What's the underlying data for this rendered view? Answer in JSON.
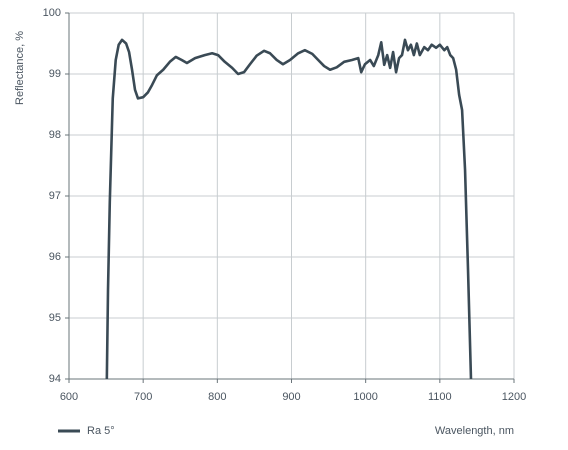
{
  "chart_data": {
    "type": "line",
    "x_label": "Wavelength, nm",
    "y_label": "Reflectance, %",
    "xlim": [
      600,
      1200
    ],
    "ylim": [
      94,
      100
    ],
    "xticks": [
      600,
      700,
      800,
      900,
      1000,
      1100,
      1200
    ],
    "yticks": [
      94,
      95,
      96,
      97,
      98,
      99,
      100
    ],
    "grid": true,
    "legend": "bottom-left",
    "x": [
      651,
      652.6,
      655,
      659,
      663,
      667,
      671.5,
      677,
      681,
      685,
      689,
      693,
      700,
      706.5,
      712,
      718.6,
      727,
      736,
      744,
      752,
      759,
      770,
      783,
      793,
      801,
      810,
      820,
      828,
      836,
      844,
      853,
      863,
      871,
      880,
      888.5,
      898,
      909,
      918,
      928,
      936,
      944,
      952,
      961,
      971,
      981.5,
      990,
      994,
      999,
      1006,
      1011,
      1017,
      1021,
      1025,
      1029,
      1033,
      1037,
      1041,
      1045,
      1049,
      1053,
      1057,
      1061,
      1065,
      1069,
      1073,
      1079,
      1084,
      1089,
      1095,
      1100,
      1106,
      1110,
      1114,
      1118,
      1122,
      1126,
      1130,
      1134,
      1138,
      1142
    ],
    "series": [
      {
        "name": "Ra 5°",
        "color": "#3a4a55",
        "values": [
          94,
          95.46,
          96.9,
          98.6,
          99.23,
          99.48,
          99.56,
          99.5,
          99.36,
          99.07,
          98.74,
          98.6,
          98.62,
          98.7,
          98.82,
          98.98,
          99.07,
          99.2,
          99.28,
          99.23,
          99.18,
          99.26,
          99.31,
          99.34,
          99.31,
          99.2,
          99.1,
          99,
          99.03,
          99.16,
          99.3,
          99.38,
          99.34,
          99.23,
          99.16,
          99.23,
          99.34,
          99.39,
          99.33,
          99.23,
          99.13,
          99.07,
          99.11,
          99.2,
          99.23,
          99.26,
          99.03,
          99.16,
          99.23,
          99.13,
          99.31,
          99.52,
          99.15,
          99.31,
          99.1,
          99.36,
          99.03,
          99.26,
          99.31,
          99.56,
          99.39,
          99.48,
          99.31,
          99.5,
          99.31,
          99.44,
          99.39,
          99.48,
          99.43,
          99.48,
          99.39,
          99.44,
          99.31,
          99.26,
          99.07,
          98.66,
          98.41,
          97.43,
          95.79,
          94
        ]
      }
    ]
  }
}
